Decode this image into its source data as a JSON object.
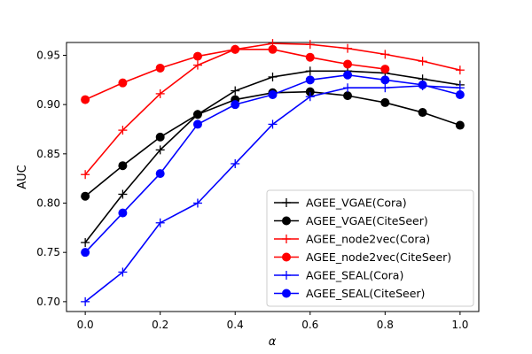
{
  "chart_data": {
    "type": "line",
    "title": "",
    "xlabel": "α",
    "ylabel": "AUC",
    "xlim": [
      -0.05,
      1.05
    ],
    "ylim": [
      0.69,
      0.963
    ],
    "x_ticks": [
      0.0,
      0.2,
      0.4,
      0.6,
      0.8,
      1.0
    ],
    "x_tick_labels": [
      "0.0",
      "0.2",
      "0.4",
      "0.6",
      "0.8",
      "1.0"
    ],
    "y_ticks": [
      0.7,
      0.75,
      0.8,
      0.85,
      0.9,
      0.95
    ],
    "y_tick_labels": [
      "0.70",
      "0.75",
      "0.80",
      "0.85",
      "0.90",
      "0.95"
    ],
    "grid": false,
    "legend_position": "lower-right",
    "x": [
      0.0,
      0.1,
      0.2,
      0.3,
      0.4,
      0.5,
      0.6,
      0.7,
      0.8,
      0.9,
      1.0
    ],
    "series": [
      {
        "name": "AGEE_VGAE(Cora)",
        "color": "#000000",
        "marker": "plus",
        "values": [
          0.76,
          0.809,
          0.854,
          0.89,
          0.914,
          0.928,
          0.934,
          0.934,
          0.932,
          0.926,
          0.92
        ]
      },
      {
        "name": "AGEE_VGAE(CiteSeer)",
        "color": "#000000",
        "marker": "circle",
        "values": [
          0.807,
          0.838,
          0.867,
          0.89,
          0.905,
          0.912,
          0.913,
          0.909,
          0.902,
          0.892,
          0.879
        ]
      },
      {
        "name": "AGEE_node2vec(Cora)",
        "color": "#ff0000",
        "marker": "plus",
        "values": [
          0.829,
          0.874,
          0.911,
          0.94,
          0.956,
          0.962,
          0.961,
          0.957,
          0.951,
          0.944,
          0.935
        ]
      },
      {
        "name": "AGEE_node2vec(CiteSeer)",
        "color": "#ff0000",
        "marker": "circle",
        "values": [
          0.905,
          0.922,
          0.937,
          0.949,
          0.956,
          0.956,
          0.948,
          0.941,
          0.936,
          null,
          null
        ]
      },
      {
        "name": "AGEE_SEAL(Cora)",
        "color": "#0000ff",
        "marker": "plus",
        "values": [
          0.7,
          0.73,
          0.78,
          0.8,
          0.84,
          0.88,
          0.908,
          0.917,
          0.917,
          0.919,
          0.917
        ]
      },
      {
        "name": "AGEE_SEAL(CiteSeer)",
        "color": "#0000ff",
        "marker": "circle",
        "values": [
          0.75,
          0.79,
          0.83,
          0.88,
          0.9,
          0.91,
          0.925,
          0.93,
          0.925,
          0.92,
          0.91
        ]
      }
    ]
  }
}
